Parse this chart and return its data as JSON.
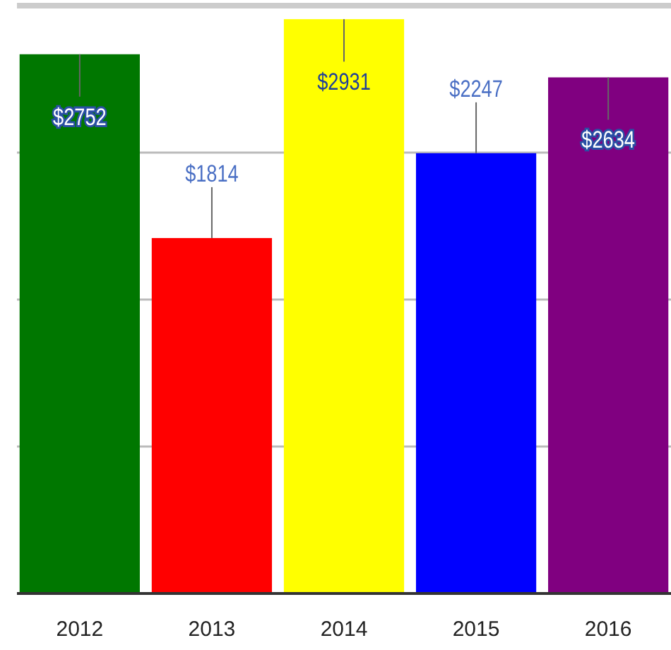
{
  "chart_data": {
    "type": "bar",
    "categories": [
      "2012",
      "2013",
      "2014",
      "2015",
      "2016"
    ],
    "values": [
      2752,
      1814,
      2931,
      2247,
      2634
    ],
    "value_labels": [
      "$2752",
      "$1814",
      "$2931",
      "$2247",
      "$2634"
    ],
    "colors": [
      "#007700",
      "#ff0000",
      "#ffff00",
      "#0000ff",
      "#800080"
    ],
    "ylim": [
      0,
      3000
    ],
    "yticks": [
      {
        "value": 0,
        "label": null
      },
      {
        "value": 750,
        "label": null
      },
      {
        "value": 1500,
        "label": null
      },
      {
        "value": 2250,
        "label": null
      },
      {
        "value": 3000,
        "label": null
      }
    ],
    "grid": "y",
    "tick_labels": "x"
  }
}
